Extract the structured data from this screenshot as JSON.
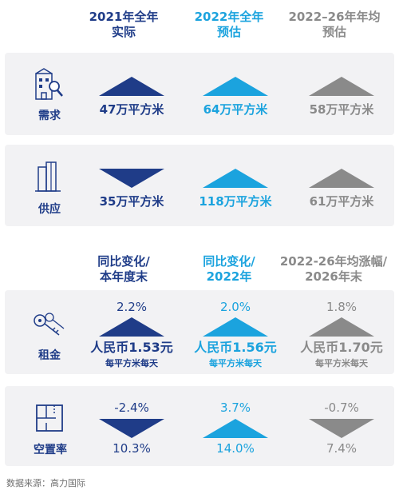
{
  "headers_top": {
    "col1_line1": "2021年全年",
    "col1_line2": "实际",
    "col2_line1": "2022年全年",
    "col2_line2": "预估",
    "col3_line1": "2022–26年年均",
    "col3_line2": "预估"
  },
  "demand": {
    "label": "需求",
    "icon": "building-search-icon",
    "col1": {
      "value": "47万平方米",
      "direction": "up"
    },
    "col2": {
      "value": "64万平方米",
      "direction": "up"
    },
    "col3": {
      "value": "58万平方米",
      "direction": "up"
    }
  },
  "supply": {
    "label": "供应",
    "icon": "building-icon",
    "col1": {
      "value": "35万平方米",
      "direction": "down"
    },
    "col2": {
      "value": "118万平方米",
      "direction": "up"
    },
    "col3": {
      "value": "61万平方米",
      "direction": "up"
    }
  },
  "headers_bottom": {
    "col1_line1": "同比变化/",
    "col1_line2": "本年度末",
    "col2_line1": "同比变化/",
    "col2_line2": "2022年",
    "col3_line1": "2022-26年均涨幅/",
    "col3_line2": "2026年末"
  },
  "rent": {
    "label": "租金",
    "icon": "keys-icon",
    "col1": {
      "change": "2.2%",
      "value": "人民币1.53元",
      "unit": "每平方米每天",
      "direction": "up"
    },
    "col2": {
      "change": "2.0%",
      "value": "人民币1.56元",
      "unit": "每平方米每天",
      "direction": "up"
    },
    "col3": {
      "change": "1.8%",
      "value": "人民币1.70元",
      "unit": "每平方米每天",
      "direction": "up"
    }
  },
  "vacancy": {
    "label": "空置率",
    "icon": "floorplan-icon",
    "col1": {
      "change": "-2.4%",
      "value": "10.3%",
      "direction": "down"
    },
    "col2": {
      "change": "3.7%",
      "value": "14.0%",
      "direction": "up"
    },
    "col3": {
      "change": "-0.7%",
      "value": "7.4%",
      "direction": "down"
    }
  },
  "colors": {
    "navy": "#1f3c88",
    "blue": "#1ba3de",
    "grey": "#8a8a8a",
    "panel": "#f2f2f4"
  },
  "source": "数据来源：高力国际"
}
